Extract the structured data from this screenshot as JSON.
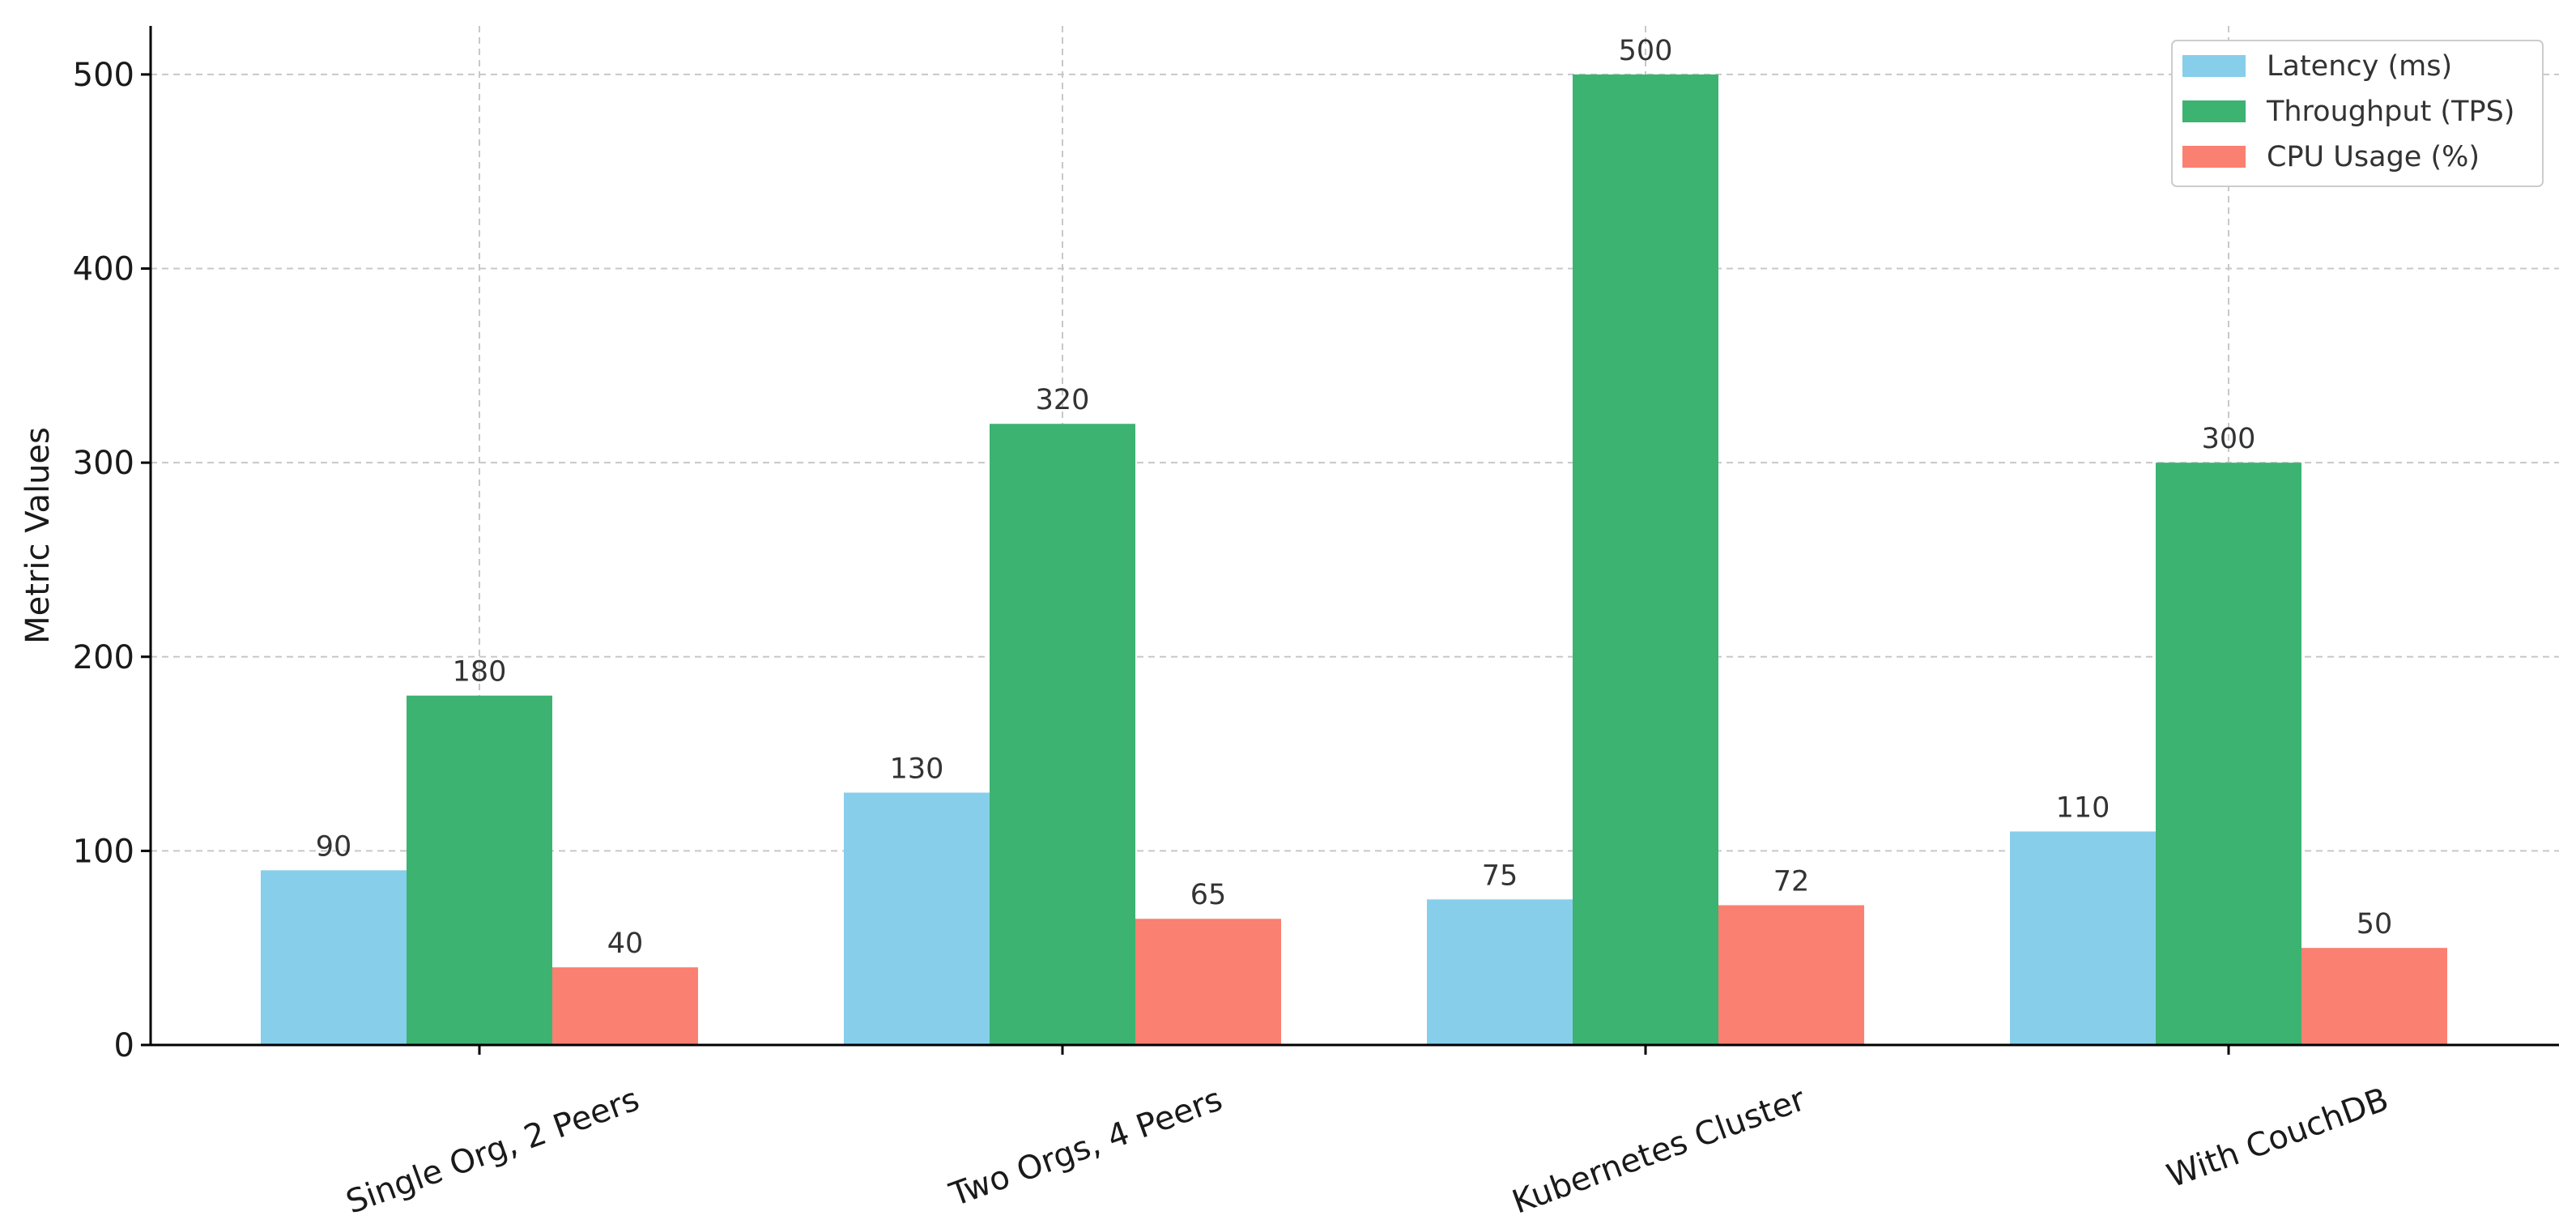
{
  "chart_data": {
    "type": "bar",
    "title": "",
    "xlabel": "",
    "ylabel": "Metric Values",
    "ylim": [
      0,
      525
    ],
    "yticks": [
      0,
      100,
      200,
      300,
      400,
      500
    ],
    "grid": true,
    "legend_position": "top-right",
    "categories": [
      "Single Org, 2 Peers",
      "Two Orgs, 4 Peers",
      "Kubernetes Cluster",
      "With CouchDB"
    ],
    "series": [
      {
        "name": "Latency (ms)",
        "color": "#87CEEB",
        "values": [
          90,
          130,
          75,
          110
        ]
      },
      {
        "name": "Throughput (TPS)",
        "color": "#3CB371",
        "values": [
          180,
          320,
          500,
          300
        ]
      },
      {
        "name": "CPU Usage (%)",
        "color": "#FA8072",
        "values": [
          40,
          65,
          72,
          50
        ]
      }
    ]
  }
}
